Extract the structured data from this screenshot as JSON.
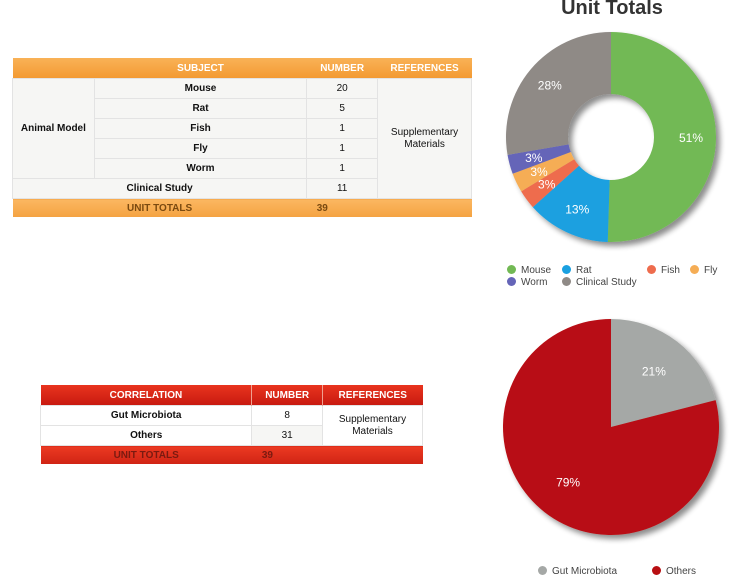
{
  "table1": {
    "headers": [
      "SUBJECT",
      "NUMBER",
      "REFERENCES"
    ],
    "group_label": "Animal Model",
    "rows": [
      {
        "subject": "Mouse",
        "number": "20"
      },
      {
        "subject": "Rat",
        "number": "5"
      },
      {
        "subject": "Fish",
        "number": "1"
      },
      {
        "subject": "Fly",
        "number": "1"
      },
      {
        "subject": "Worm",
        "number": "1"
      },
      {
        "subject": "Clinical Study",
        "number": "11"
      }
    ],
    "reference": "Supplementary Materials",
    "total_label": "UNIT TOTALS",
    "total_value": "39"
  },
  "table2": {
    "headers": [
      "CORRELATION",
      "NUMBER",
      "REFERENCES"
    ],
    "rows": [
      {
        "subject": "Gut Microbiota",
        "number": "8"
      },
      {
        "subject": "Others",
        "number": "31"
      }
    ],
    "reference": "Supplementary Materials",
    "total_label": "UNIT TOTALS",
    "total_value": "39"
  },
  "chart_data": [
    {
      "type": "pie",
      "style": "donut",
      "title": "Unit Totals",
      "categories": [
        "Mouse",
        "Rat",
        "Fish",
        "Fly",
        "Worm",
        "Clinical Study"
      ],
      "values": [
        51,
        13,
        3,
        3,
        3,
        28
      ],
      "labels": [
        "51%",
        "13%",
        "3%",
        "3%",
        "3%",
        "28%"
      ],
      "colors": [
        "#72b954",
        "#1aa0e0",
        "#ee6c4d",
        "#f5ad55",
        "#6565b8",
        "#8f8a86"
      ],
      "legend_position": "bottom"
    },
    {
      "type": "pie",
      "title": "",
      "categories": [
        "Gut Microbiota",
        "Others"
      ],
      "values": [
        21,
        79
      ],
      "labels": [
        "21%",
        "79%"
      ],
      "colors": [
        "#a5a8a6",
        "#b80f12"
      ],
      "legend_position": "bottom"
    }
  ]
}
